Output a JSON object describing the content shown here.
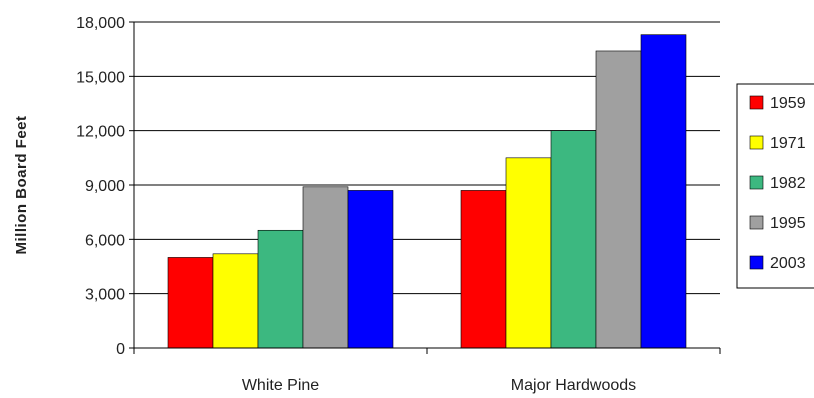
{
  "chart_data": {
    "type": "bar",
    "ylabel": "Million Board Feet",
    "xlabel": "",
    "title": "",
    "ylim": [
      0,
      18000
    ],
    "yticks": [
      0,
      3000,
      6000,
      9000,
      12000,
      15000,
      18000
    ],
    "ytick_labels": [
      "0",
      "3,000",
      "6,000",
      "9,000",
      "12,000",
      "15,000",
      "18,000"
    ],
    "categories": [
      "White Pine",
      "Major Hardwoods"
    ],
    "series": [
      {
        "name": "1959",
        "color": "#ff0000",
        "values": [
          5000,
          8700
        ]
      },
      {
        "name": "1971",
        "color": "#ffff00",
        "values": [
          5200,
          10500
        ]
      },
      {
        "name": "1982",
        "color": "#3cb880",
        "values": [
          6500,
          12000
        ]
      },
      {
        "name": "1995",
        "color": "#a0a0a0",
        "values": [
          8900,
          16400
        ]
      },
      {
        "name": "2003",
        "color": "#0000ff",
        "values": [
          8700,
          17300
        ]
      }
    ],
    "grid": true,
    "legend": "right"
  }
}
